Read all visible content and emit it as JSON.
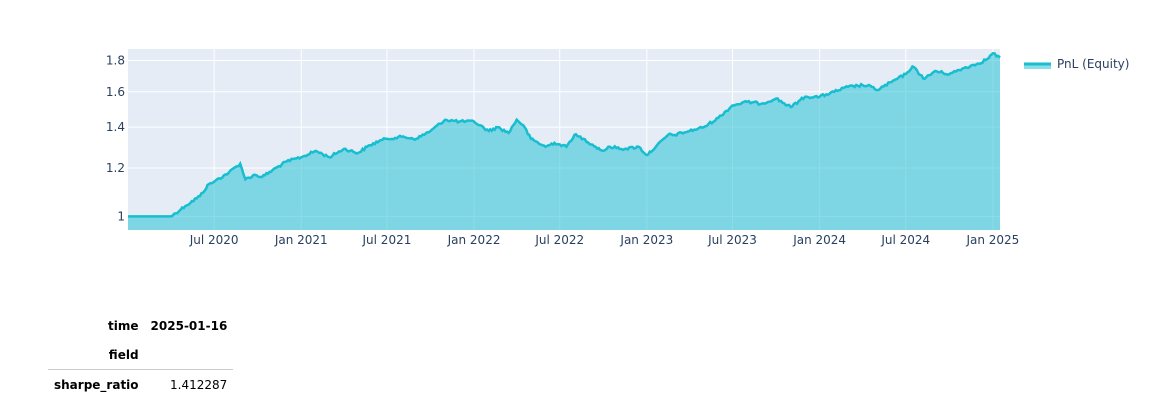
{
  "chart_data": {
    "type": "area",
    "title": "",
    "xlabel": "",
    "ylabel": "",
    "x_axis_type": "date",
    "xlim": [
      "2020-01-01",
      "2025-01-16"
    ],
    "ylim": [
      0.95,
      1.88
    ],
    "y_scale": "log",
    "grid": true,
    "legend_position": "top-right",
    "x_ticks": [
      "2020-07-01",
      "2021-01-01",
      "2021-07-01",
      "2022-01-01",
      "2022-07-01",
      "2023-01-01",
      "2023-07-01",
      "2024-01-01",
      "2024-07-01",
      "2025-01-01"
    ],
    "x_tick_labels": [
      "Jul 2020",
      "Jan 2021",
      "Jul 2021",
      "Jan 2022",
      "Jul 2022",
      "Jan 2023",
      "Jul 2023",
      "Jan 2024",
      "Jul 2024",
      "Jan 2025"
    ],
    "y_ticks": [
      1,
      1.2,
      1.4,
      1.6,
      1.8
    ],
    "y_tick_labels": [
      "1",
      "1.2",
      "1.4",
      "1.6",
      "1.8"
    ],
    "series": [
      {
        "name": "PnL (Equity)",
        "color": "#17becf",
        "fill": "tozeroy",
        "x": [
          "2020-01-01",
          "2020-03-15",
          "2020-04-01",
          "2020-05-01",
          "2020-06-01",
          "2020-06-20",
          "2020-07-01",
          "2020-08-01",
          "2020-08-25",
          "2020-09-05",
          "2020-09-25",
          "2020-10-10",
          "2020-11-01",
          "2020-12-01",
          "2021-01-01",
          "2021-02-01",
          "2021-03-01",
          "2021-04-01",
          "2021-05-01",
          "2021-05-20",
          "2021-06-15",
          "2021-07-01",
          "2021-08-01",
          "2021-09-01",
          "2021-10-01",
          "2021-11-01",
          "2021-12-01",
          "2022-01-01",
          "2022-02-01",
          "2022-02-20",
          "2022-03-15",
          "2022-04-01",
          "2022-04-15",
          "2022-05-01",
          "2022-06-01",
          "2022-06-20",
          "2022-07-15",
          "2022-08-01",
          "2022-08-20",
          "2022-09-15",
          "2022-10-01",
          "2022-10-15",
          "2022-11-15",
          "2022-12-15",
          "2023-01-01",
          "2023-01-20",
          "2023-02-15",
          "2023-03-01",
          "2023-04-01",
          "2023-05-01",
          "2023-06-01",
          "2023-07-01",
          "2023-08-01",
          "2023-09-01",
          "2023-10-01",
          "2023-11-01",
          "2023-12-01",
          "2024-01-01",
          "2024-02-01",
          "2024-03-01",
          "2024-04-01",
          "2024-04-20",
          "2024-05-01",
          "2024-06-01",
          "2024-07-01",
          "2024-07-15",
          "2024-08-10",
          "2024-09-01",
          "2024-10-01",
          "2024-11-01",
          "2024-12-01",
          "2024-12-20",
          "2025-01-01",
          "2025-01-16"
        ],
        "y": [
          1.0,
          1.0,
          1.0,
          1.04,
          1.08,
          1.13,
          1.14,
          1.18,
          1.22,
          1.15,
          1.17,
          1.16,
          1.19,
          1.23,
          1.25,
          1.28,
          1.25,
          1.29,
          1.27,
          1.3,
          1.33,
          1.34,
          1.35,
          1.34,
          1.38,
          1.44,
          1.43,
          1.43,
          1.38,
          1.4,
          1.37,
          1.44,
          1.41,
          1.34,
          1.3,
          1.32,
          1.3,
          1.36,
          1.34,
          1.3,
          1.28,
          1.3,
          1.29,
          1.3,
          1.26,
          1.3,
          1.36,
          1.36,
          1.38,
          1.4,
          1.45,
          1.52,
          1.54,
          1.53,
          1.56,
          1.51,
          1.57,
          1.57,
          1.6,
          1.63,
          1.64,
          1.63,
          1.61,
          1.66,
          1.71,
          1.76,
          1.68,
          1.73,
          1.71,
          1.75,
          1.78,
          1.81,
          1.85,
          1.82
        ]
      }
    ]
  },
  "stats_table": {
    "header_label": "time",
    "header_value": "2025-01-16",
    "index_label": "field",
    "rows": [
      {
        "label": "sharpe_ratio",
        "value": "1.412287"
      }
    ]
  }
}
